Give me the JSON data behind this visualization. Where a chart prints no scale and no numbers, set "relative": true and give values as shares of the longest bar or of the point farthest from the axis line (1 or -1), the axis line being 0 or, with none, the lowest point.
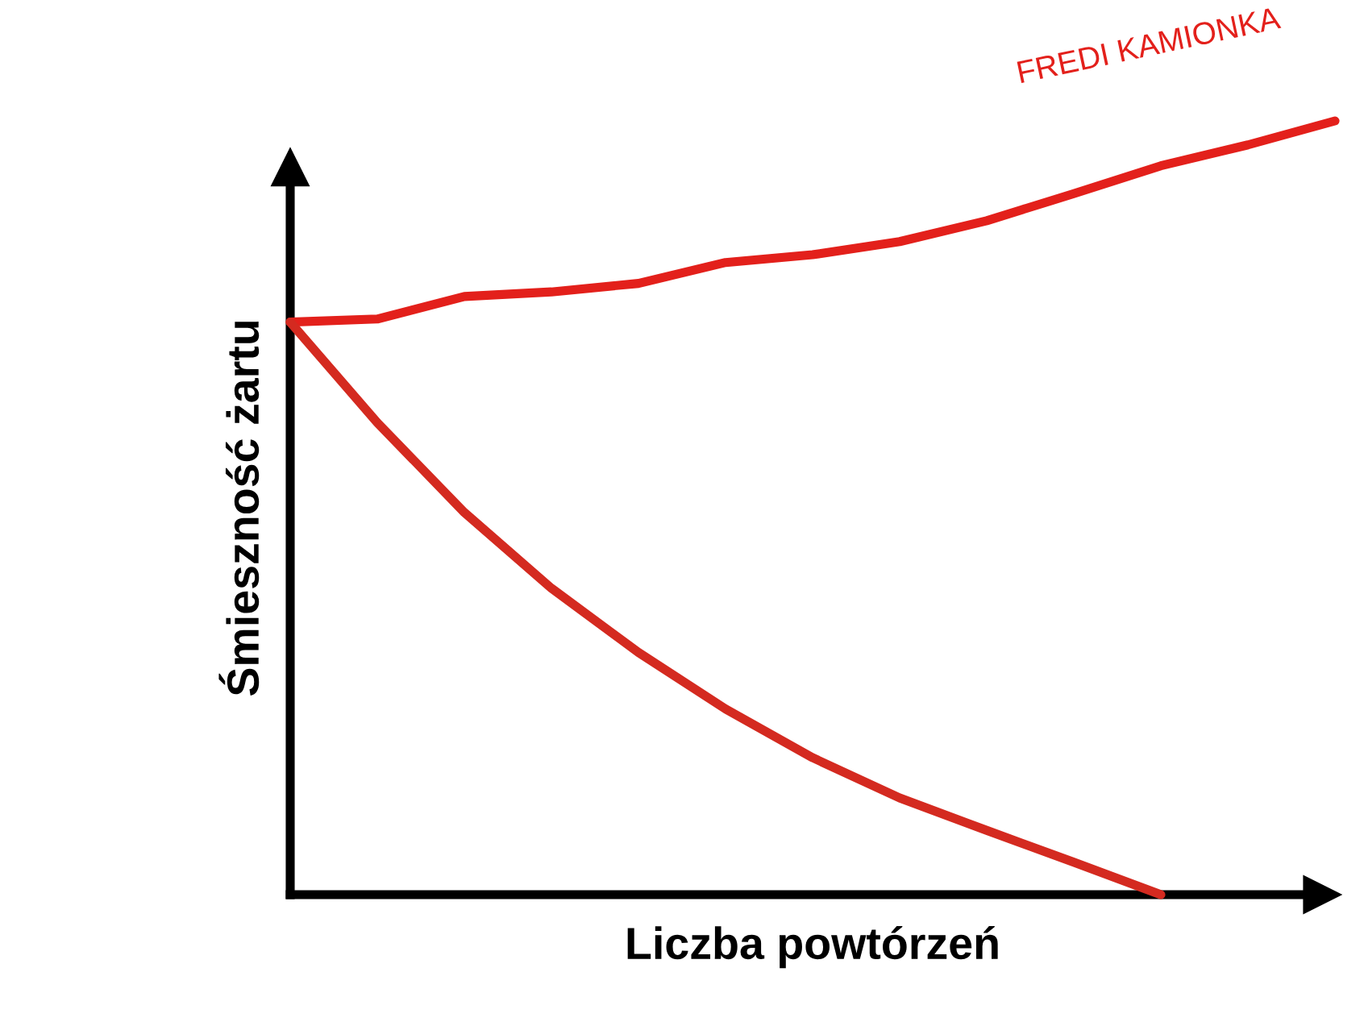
{
  "chart_data": {
    "type": "line",
    "relative": true,
    "xlabel": "Liczba powtórzeń",
    "ylabel": "Śmieszność żartu",
    "categories": [
      null,
      null,
      null,
      null,
      null,
      null,
      null,
      null,
      null,
      null,
      null,
      null,
      null
    ],
    "series": [
      {
        "name": "FREDI KAMIONKA",
        "color": "#e3201b",
        "values": [
          0.74,
          0.744,
          0.773,
          0.779,
          0.79,
          0.817,
          0.827,
          0.844,
          0.871,
          0.906,
          0.942,
          0.969,
          1
        ]
      },
      {
        "color": "#d42a20",
        "values": [
          0.74,
          0.61,
          0.494,
          0.396,
          0.313,
          0.24,
          0.177,
          0.125,
          0.083,
          0.042,
          0.0,
          null,
          null
        ]
      }
    ],
    "marker": "none",
    "line_style": "solid",
    "legend": false
  }
}
